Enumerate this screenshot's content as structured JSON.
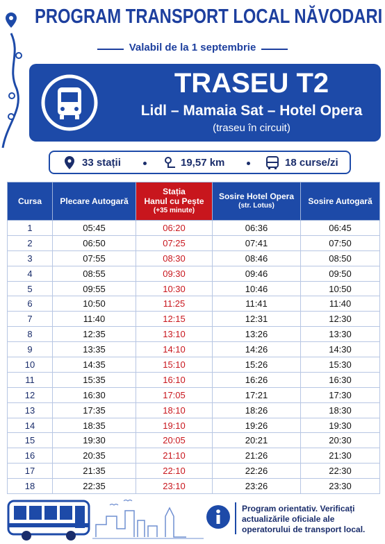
{
  "header": {
    "title": "PROGRAM TRANSPORT LOCAL NĂVODARI",
    "subtitle": "Valabil de la 1 septembrie"
  },
  "route": {
    "name": "TRASEU T2",
    "path": "Lidl – Mamaia Sat – Hotel Opera",
    "note": "(traseu în circuit)"
  },
  "info": {
    "stops": "33 stații",
    "distance": "19,57 km",
    "trips": "18 curse/zi"
  },
  "table": {
    "columns": [
      [
        "Cursa"
      ],
      [
        "Plecare Autogară"
      ],
      [
        "Stația",
        "Hanul cu Pește",
        "(+35 minute)"
      ],
      [
        "Sosire Hotel Opera",
        "(str. Lotus)"
      ],
      [
        "Sosire Autogară"
      ]
    ],
    "rows": [
      [
        "1",
        "05:45",
        "06:20",
        "06:36",
        "06:45"
      ],
      [
        "2",
        "06:50",
        "07:25",
        "07:41",
        "07:50"
      ],
      [
        "3",
        "07:55",
        "08:30",
        "08:46",
        "08:50"
      ],
      [
        "4",
        "08:55",
        "09:30",
        "09:46",
        "09:50"
      ],
      [
        "5",
        "09:55",
        "10:30",
        "10:46",
        "10:50"
      ],
      [
        "6",
        "10:50",
        "11:25",
        "11:41",
        "11:40"
      ],
      [
        "7",
        "11:40",
        "12:15",
        "12:31",
        "12:30"
      ],
      [
        "8",
        "12:35",
        "13:10",
        "13:26",
        "13:30"
      ],
      [
        "9",
        "13:35",
        "14:10",
        "14:26",
        "14:30"
      ],
      [
        "10",
        "14:35",
        "15:10",
        "15:26",
        "15:30"
      ],
      [
        "11",
        "15:35",
        "16:10",
        "16:26",
        "16:30"
      ],
      [
        "12",
        "16:30",
        "17:05",
        "17:21",
        "17:30"
      ],
      [
        "13",
        "17:35",
        "18:10",
        "18:26",
        "18:30"
      ],
      [
        "14",
        "18:35",
        "19:10",
        "19:26",
        "19:30"
      ],
      [
        "15",
        "19:30",
        "20:05",
        "20:21",
        "20:30"
      ],
      [
        "16",
        "20:35",
        "21:10",
        "21:26",
        "21:30"
      ],
      [
        "17",
        "21:35",
        "22:10",
        "22:26",
        "22:30"
      ],
      [
        "18",
        "22:35",
        "23:10",
        "23:26",
        "23:30"
      ]
    ]
  },
  "footer": {
    "note": "Program orientativ. Verificați actualizările oficiale ale operatorului de transport local."
  }
}
